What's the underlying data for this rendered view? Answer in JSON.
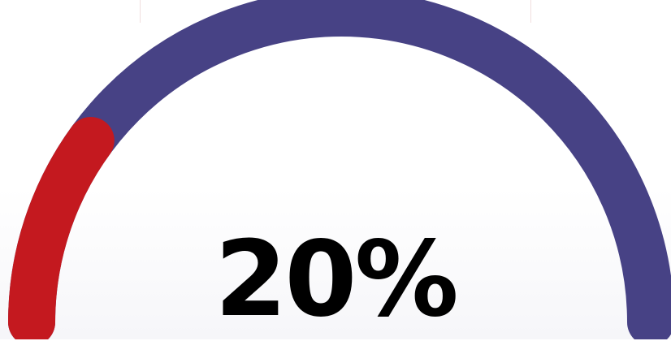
{
  "gauge": {
    "value_percent": 20,
    "label": "20%",
    "colors": {
      "track": "#474285",
      "progress": "#c4191f"
    }
  }
}
